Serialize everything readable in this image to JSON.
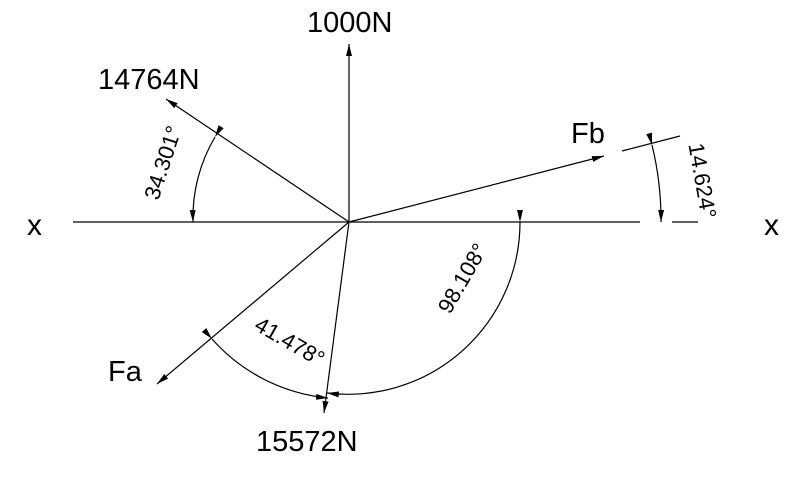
{
  "diagram": {
    "axis": {
      "left_label": "x",
      "right_label": "x"
    },
    "forces": {
      "up": "1000N",
      "upper_left": "14764N",
      "lower_left": "Fa",
      "down": "15572N",
      "right": "Fb"
    },
    "angles": {
      "upper_left": "34.301°",
      "lower_left": "41.478°",
      "lower_right": "98.108°",
      "right": "14.624°"
    },
    "colors": {
      "ink": "#000000",
      "background": "#ffffff"
    }
  }
}
